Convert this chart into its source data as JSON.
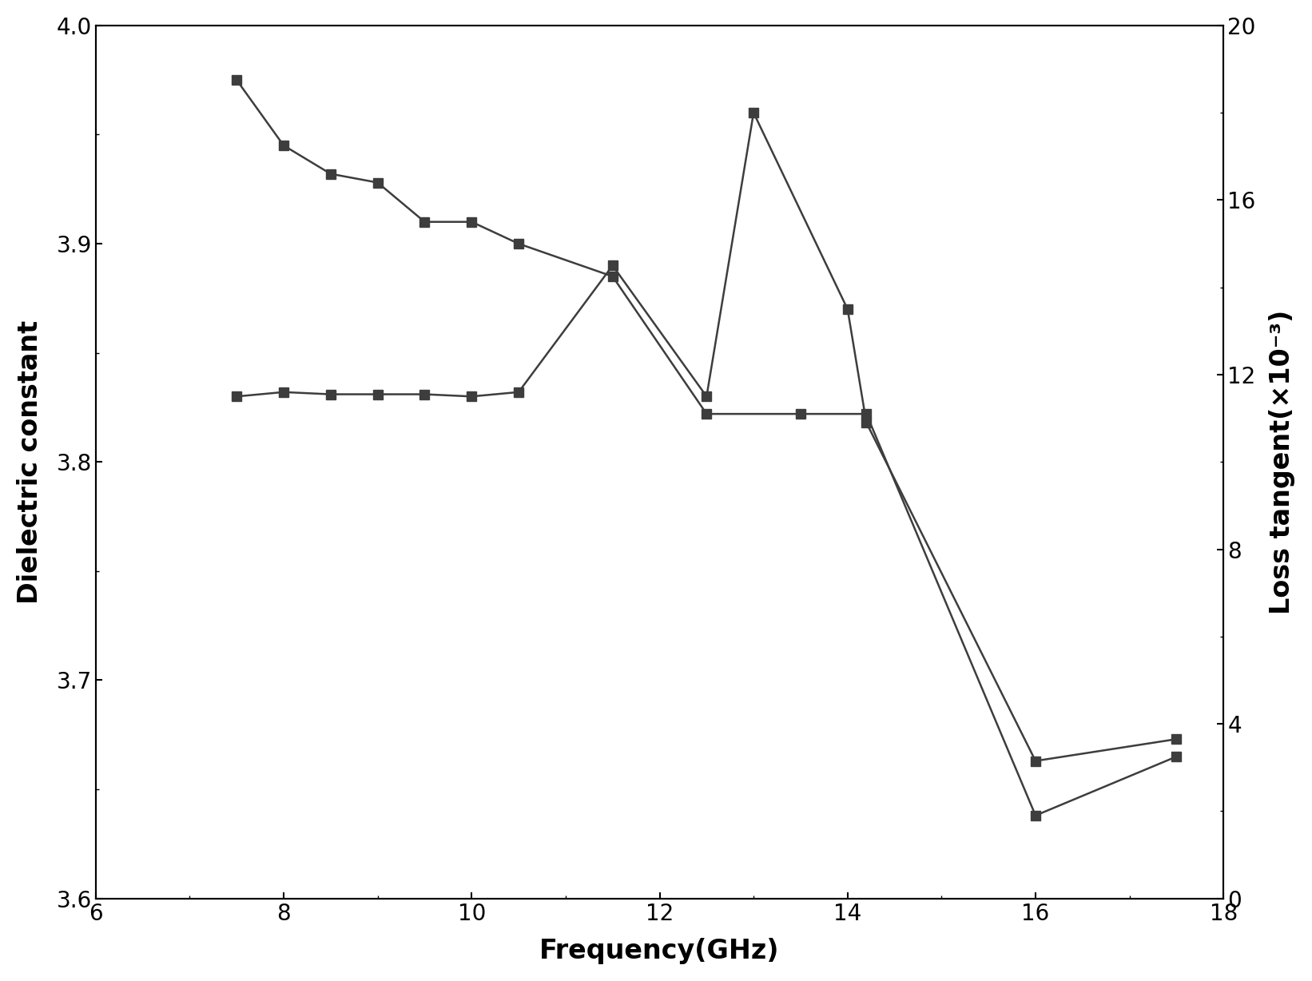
{
  "dc_x": [
    7.5,
    8.0,
    8.5,
    9.0,
    9.5,
    10.0,
    10.5,
    11.5,
    12.5,
    13.5,
    14.2,
    16.0,
    17.5
  ],
  "dc_y": [
    3.975,
    3.945,
    3.932,
    3.928,
    3.91,
    3.91,
    3.9,
    3.885,
    3.822,
    3.822,
    3.822,
    3.638,
    3.665
  ],
  "lt_x": [
    7.5,
    8.0,
    8.5,
    9.0,
    9.5,
    10.0,
    10.5,
    11.5,
    12.5,
    13.0,
    14.0,
    14.2,
    16.0,
    17.5
  ],
  "lt_y": [
    11.5,
    11.6,
    11.55,
    11.55,
    11.55,
    11.5,
    11.6,
    14.5,
    11.5,
    18.0,
    13.5,
    10.9,
    3.15,
    3.65
  ],
  "ylabel_left": "Dielectric constant",
  "ylabel_right": "Loss tangent(×10⁻³)",
  "xlabel": "Frequency(GHz)",
  "ylim_left": [
    3.6,
    4.0
  ],
  "ylim_right": [
    0,
    20
  ],
  "xlim": [
    6,
    18
  ],
  "xticks": [
    6,
    8,
    10,
    12,
    14,
    16,
    18
  ],
  "yticks_left": [
    3.6,
    3.7,
    3.8,
    3.9,
    4.0
  ],
  "yticks_right": [
    0,
    4,
    8,
    12,
    16,
    20
  ],
  "color": "#3d3d3d",
  "background": "#ffffff",
  "tick_fontsize": 20,
  "label_fontsize": 24,
  "linewidth": 1.8,
  "marker": "s",
  "markersize": 8
}
